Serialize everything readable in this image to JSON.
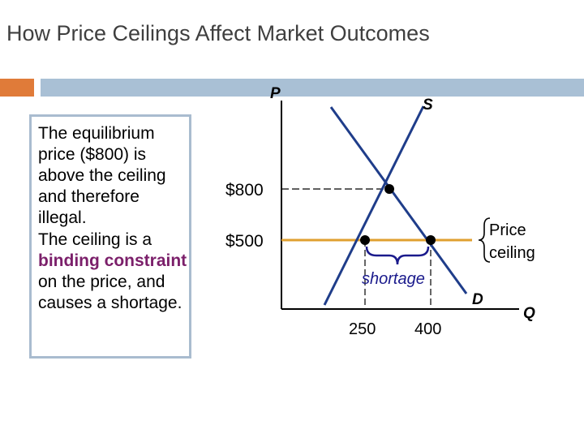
{
  "slide": {
    "title": "How Price Ceilings Affect Market Outcomes"
  },
  "textbox": {
    "para1": "The equilibrium price ($800) is above the ceiling and therefore illegal.",
    "para2_prefix": "The ceiling is a ",
    "para2_highlight": "binding constraint",
    "para2_suffix": " on the price, and causes a shortage."
  },
  "chart_data": {
    "type": "line",
    "xlabel": "Q",
    "ylabel": "P",
    "x_ticks": [
      {
        "value": 250,
        "label": "250"
      },
      {
        "value": 400,
        "label": "400"
      }
    ],
    "y_ticks": [
      {
        "value": 800,
        "label": "$800"
      },
      {
        "value": 500,
        "label": "$500"
      }
    ],
    "series": [
      {
        "name": "S",
        "kind": "supply"
      },
      {
        "name": "D",
        "kind": "demand"
      }
    ],
    "equilibrium": {
      "price": 800
    },
    "price_ceiling": {
      "value": 500,
      "label": "Price ceiling"
    },
    "shortage": {
      "from": 250,
      "to": 400,
      "label": "shortage"
    },
    "colors": {
      "curves": "#1f3d8a",
      "ceiling": "#e0a030",
      "dots": "#000000",
      "shortage_text": "#1a1a8c"
    }
  }
}
